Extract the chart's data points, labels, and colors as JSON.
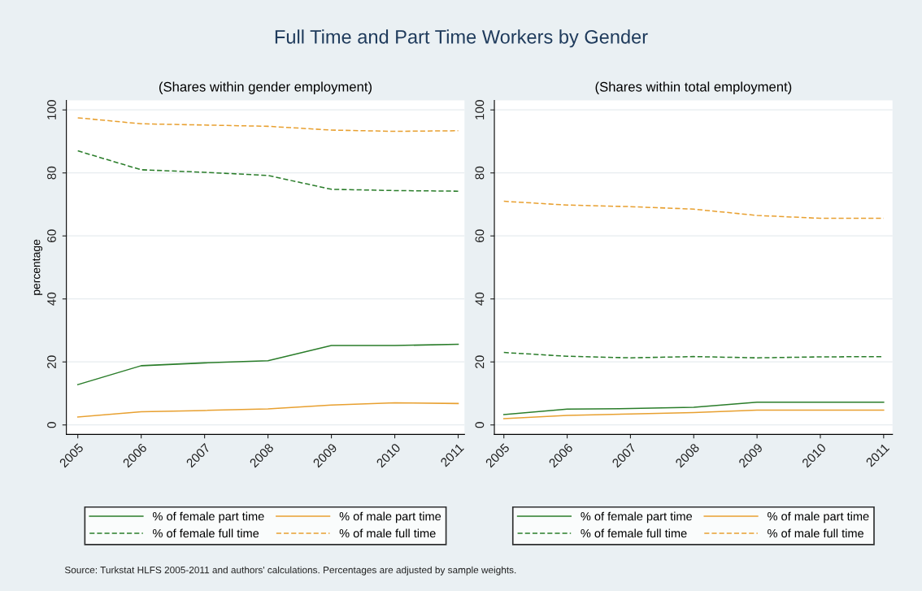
{
  "chart_data": [
    {
      "type": "line",
      "title": "Full Time and Part Time Workers by Gender",
      "subtitle": "(Shares within gender employment)",
      "ylabel": "percentage",
      "x": [
        2005,
        2006,
        2007,
        2008,
        2009,
        2010,
        2011
      ],
      "xlim": [
        2004.82,
        2011.1
      ],
      "ylim": [
        -3,
        103
      ],
      "xticks": [
        2005,
        2006,
        2007,
        2008,
        2009,
        2010,
        2011
      ],
      "yticks": [
        0,
        20,
        40,
        60,
        80,
        100
      ],
      "grid": "y",
      "legend": "bottom",
      "annotations": [
        "Source: Turkstat HLFS 2005-2011 and authors' calculations. Percentages are adjusted by sample weights."
      ],
      "series": [
        {
          "name": "% of female part time",
          "color": "#2a7d2a",
          "line_style": "solid",
          "values": [
            12.8,
            18.8,
            19.7,
            20.4,
            25.2,
            25.2,
            25.6
          ]
        },
        {
          "name": "% of male part time",
          "color": "#e8a030",
          "line_style": "solid",
          "values": [
            2.5,
            4.2,
            4.6,
            5.1,
            6.3,
            7.0,
            6.8
          ]
        },
        {
          "name": "% of female full time",
          "color": "#2a7d2a",
          "line_style": "dashed",
          "values": [
            87.0,
            81.0,
            80.2,
            79.2,
            74.8,
            74.4,
            74.2
          ]
        },
        {
          "name": "% of male full time",
          "color": "#e8a030",
          "line_style": "dashed",
          "values": [
            97.5,
            95.6,
            95.2,
            94.8,
            93.6,
            93.2,
            93.4
          ]
        }
      ]
    },
    {
      "type": "line",
      "subtitle": "(Shares within total employment)",
      "x": [
        2005,
        2006,
        2007,
        2008,
        2009,
        2010,
        2011
      ],
      "xlim": [
        2004.85,
        2011.14
      ],
      "ylim": [
        -3,
        103
      ],
      "xticks": [
        2005,
        2006,
        2007,
        2008,
        2009,
        2010,
        2011
      ],
      "yticks": [
        0,
        20,
        40,
        60,
        80,
        100
      ],
      "grid": "y",
      "legend": "bottom",
      "series": [
        {
          "name": "% of female part time",
          "color": "#2a7d2a",
          "line_style": "solid",
          "values": [
            3.3,
            5.0,
            5.2,
            5.6,
            7.2,
            7.2,
            7.2
          ]
        },
        {
          "name": "% of male part time",
          "color": "#e8a030",
          "line_style": "solid",
          "values": [
            2.0,
            3.0,
            3.5,
            3.9,
            4.7,
            4.7,
            4.7
          ]
        },
        {
          "name": "% of female full time",
          "color": "#2a7d2a",
          "line_style": "dashed",
          "values": [
            23.0,
            21.8,
            21.3,
            21.7,
            21.3,
            21.6,
            21.7
          ]
        },
        {
          "name": "% of male full time",
          "color": "#e8a030",
          "line_style": "dashed",
          "values": [
            71.0,
            69.8,
            69.3,
            68.5,
            66.5,
            65.6,
            65.6
          ]
        }
      ]
    }
  ]
}
